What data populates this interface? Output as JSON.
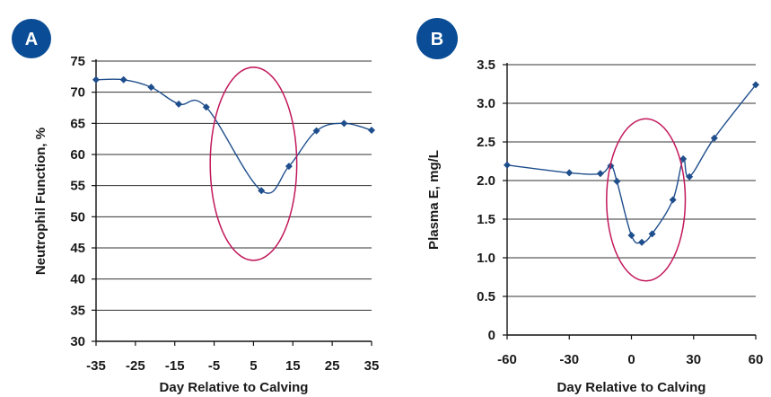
{
  "colors": {
    "series": "#1f4e8c",
    "ellipse": "#c2185b",
    "badge": "#0a4d96",
    "grid": "#333333",
    "axis": "#111111"
  },
  "chart_data": [
    {
      "panel_label": "A",
      "type": "line",
      "xlabel": "Day Relative to Calving",
      "ylabel": "Neutrophil Function, %",
      "xlim": [
        -35,
        35
      ],
      "ylim": [
        30,
        75
      ],
      "xticks": [
        -35,
        -25,
        -15,
        -5,
        5,
        15,
        25,
        35
      ],
      "yticks": [
        30,
        35,
        40,
        45,
        50,
        55,
        60,
        65,
        70,
        75
      ],
      "grid": "horizontal",
      "smooth": true,
      "series": [
        {
          "x": [
            -35,
            -28,
            -21,
            -14,
            -7,
            7,
            14,
            21,
            28,
            35
          ],
          "y": [
            72,
            72,
            70.8,
            68.1,
            67.6,
            54.2,
            58.1,
            63.8,
            65,
            63.9
          ]
        }
      ],
      "annotation": {
        "type": "ellipse",
        "cx": 5,
        "cy": 58.5,
        "rx": 11,
        "ry": 15.5
      }
    },
    {
      "panel_label": "B",
      "type": "line",
      "xlabel": "Day Relative to Calving",
      "ylabel": "Plasma E, mg/L",
      "xlim": [
        -60,
        60
      ],
      "ylim": [
        0,
        3.5
      ],
      "xticks": [
        -60,
        -30,
        0,
        30,
        60
      ],
      "yticks": [
        "0",
        "0.5",
        "1.0",
        "1.5",
        "2.0",
        "2.5",
        "3.0",
        "3.5"
      ],
      "grid": "horizontal",
      "smooth": true,
      "series": [
        {
          "x": [
            -60,
            -30,
            -15,
            -10,
            -7,
            0,
            5,
            10,
            20,
            25,
            28,
            40,
            60
          ],
          "y": [
            2.2,
            2.1,
            2.09,
            2.19,
            1.99,
            1.29,
            1.2,
            1.31,
            1.75,
            2.28,
            2.05,
            2.55,
            3.24
          ]
        }
      ],
      "annotation": {
        "type": "ellipse",
        "cx": 7,
        "cy": 1.75,
        "rx": 19,
        "ry": 1.05
      }
    }
  ]
}
